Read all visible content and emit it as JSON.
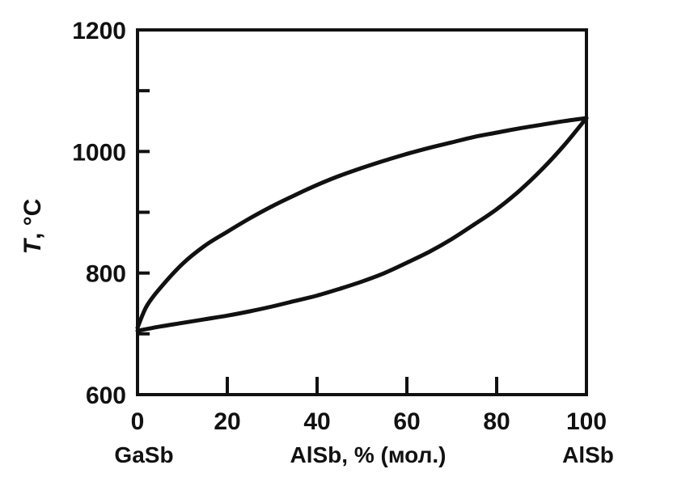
{
  "chart_data": {
    "type": "line",
    "ylabel_italic": "T",
    "ylabel_unit": ", °C",
    "xlabel": "AlSb, %  (мол.)",
    "x_left_label": "GaSb",
    "x_right_label": "AlSb",
    "xlim": [
      0,
      100
    ],
    "ylim": [
      600,
      1200
    ],
    "x_ticks": [
      0,
      20,
      40,
      60,
      80,
      100
    ],
    "x_tick_labels": [
      "0",
      "20",
      "40",
      "60",
      "80",
      "100"
    ],
    "y_ticks": [
      600,
      800,
      1000,
      1200
    ],
    "y_tick_labels": [
      "600",
      "800",
      "1000",
      "1200"
    ],
    "y_minor_ticks": [
      700,
      900,
      1100
    ],
    "x_minor_ticks": [
      10,
      30,
      50,
      70,
      90
    ],
    "grid": false,
    "colors": {
      "line": "#111111",
      "axis": "#111111"
    },
    "series": [
      {
        "x": [
          0,
          2,
          5,
          10,
          15,
          20,
          25,
          30,
          35,
          40,
          45,
          50,
          55,
          60,
          65,
          70,
          75,
          80,
          85,
          90,
          95,
          100
        ],
        "y": [
          710,
          745,
          775,
          815,
          845,
          868,
          890,
          910,
          928,
          945,
          960,
          973,
          985,
          996,
          1006,
          1015,
          1024,
          1031,
          1038,
          1044,
          1050,
          1055
        ]
      },
      {
        "x": [
          0,
          5,
          10,
          15,
          20,
          25,
          30,
          35,
          40,
          45,
          50,
          55,
          60,
          65,
          70,
          75,
          80,
          85,
          90,
          95,
          100
        ],
        "y": [
          705,
          712,
          718,
          724,
          730,
          737,
          745,
          754,
          763,
          774,
          786,
          800,
          817,
          835,
          856,
          880,
          905,
          935,
          970,
          1010,
          1055
        ]
      }
    ]
  }
}
